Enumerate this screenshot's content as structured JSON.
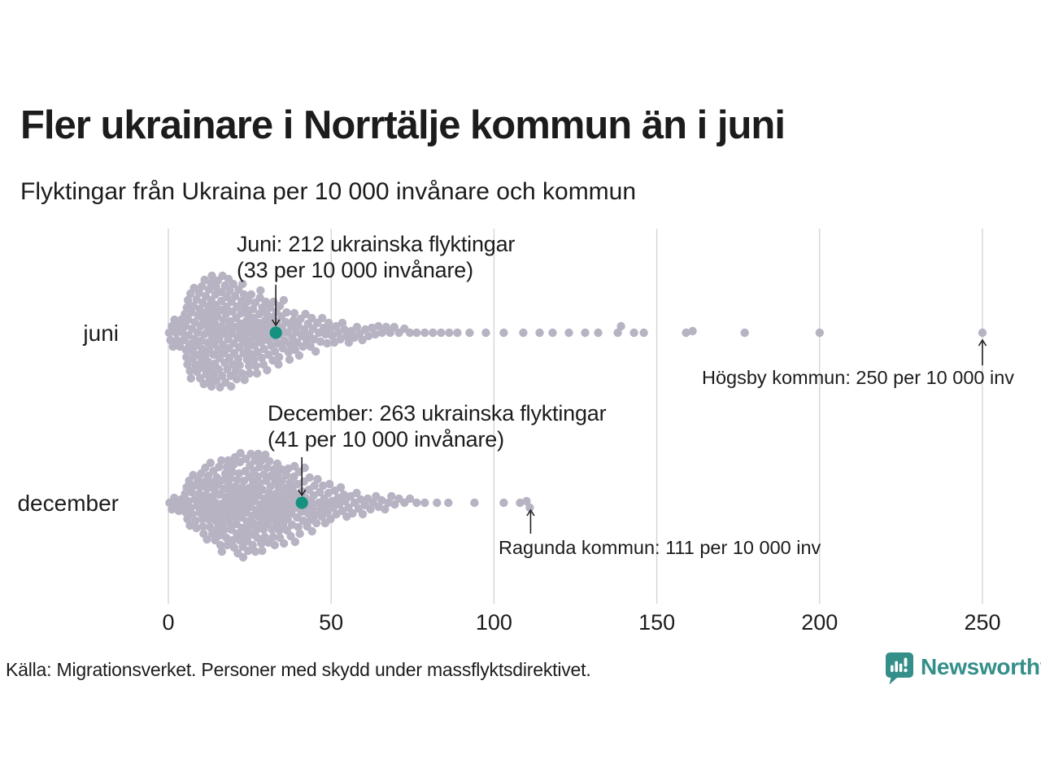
{
  "header": {
    "title": "Fler ukrainare i Norrtälje kommun än i juni",
    "subtitle": "Flyktingar från Ukraina per 10 000 invånare och kommun"
  },
  "chart_data": {
    "type": "beeswarm",
    "title": "Fler ukrainare i Norrtälje kommun än i juni",
    "subtitle": "Flyktingar från Ukraina per 10 000 invånare och kommun",
    "unit": "flyktingar per 10 000 invånare per kommun",
    "x_axis": {
      "min": 0,
      "max": 250,
      "ticks": [
        0,
        50,
        100,
        150,
        200,
        250
      ],
      "gridlines": true
    },
    "series": [
      {
        "label": "juni",
        "highlight": {
          "municipality": "Norrtälje kommun",
          "refugees": 212,
          "per_10000": 33,
          "line1": "Juni: 212 ukrainska flyktingar",
          "line2": "(33 per 10 000 invånare)"
        },
        "outlier_annotation": {
          "text": "Högsby kommun: 250 per 10 000 inv",
          "municipality": "Högsby kommun",
          "per_10000": 250
        },
        "distribution_bins": [
          {
            "from": 0,
            "to": 5,
            "count": 12
          },
          {
            "from": 5,
            "to": 10,
            "count": 32
          },
          {
            "from": 10,
            "to": 15,
            "count": 42
          },
          {
            "from": 15,
            "to": 20,
            "count": 38
          },
          {
            "from": 20,
            "to": 25,
            "count": 33
          },
          {
            "from": 25,
            "to": 30,
            "count": 28
          },
          {
            "from": 30,
            "to": 35,
            "count": 23
          },
          {
            "from": 35,
            "to": 40,
            "count": 17
          },
          {
            "from": 40,
            "to": 45,
            "count": 13
          },
          {
            "from": 45,
            "to": 50,
            "count": 10
          },
          {
            "from": 50,
            "to": 55,
            "count": 8
          },
          {
            "from": 55,
            "to": 60,
            "count": 6
          },
          {
            "from": 60,
            "to": 65,
            "count": 5
          },
          {
            "from": 65,
            "to": 70,
            "count": 4
          },
          {
            "from": 70,
            "to": 75,
            "count": 3
          },
          {
            "from": 75,
            "to": 80,
            "count": 2
          },
          {
            "from": 80,
            "to": 85,
            "count": 2
          },
          {
            "from": 85,
            "to": 90,
            "count": 2
          },
          {
            "from": 90,
            "to": 95,
            "count": 1
          },
          {
            "from": 95,
            "to": 100,
            "count": 1
          }
        ],
        "tail_values": [
          103,
          109,
          114,
          118,
          123,
          128,
          132,
          138,
          139,
          143,
          146,
          159,
          161,
          177,
          200,
          250
        ]
      },
      {
        "label": "december",
        "highlight": {
          "municipality": "Norrtälje kommun",
          "refugees": 263,
          "per_10000": 41,
          "line1": "December: 263 ukrainska flyktingar",
          "line2": "(41 per 10 000 invånare)"
        },
        "outlier_annotation": {
          "text": "Ragunda kommun: 111 per 10 000 inv",
          "municipality": "Ragunda kommun",
          "per_10000": 111
        },
        "distribution_bins": [
          {
            "from": 0,
            "to": 5,
            "count": 7
          },
          {
            "from": 5,
            "to": 10,
            "count": 20
          },
          {
            "from": 10,
            "to": 15,
            "count": 28
          },
          {
            "from": 15,
            "to": 20,
            "count": 33
          },
          {
            "from": 20,
            "to": 25,
            "count": 36
          },
          {
            "from": 25,
            "to": 30,
            "count": 36
          },
          {
            "from": 30,
            "to": 35,
            "count": 31
          },
          {
            "from": 35,
            "to": 40,
            "count": 26
          },
          {
            "from": 40,
            "to": 45,
            "count": 20
          },
          {
            "from": 45,
            "to": 50,
            "count": 15
          },
          {
            "from": 50,
            "to": 55,
            "count": 11
          },
          {
            "from": 55,
            "to": 60,
            "count": 8
          },
          {
            "from": 60,
            "to": 65,
            "count": 6
          },
          {
            "from": 65,
            "to": 70,
            "count": 5
          },
          {
            "from": 70,
            "to": 75,
            "count": 3
          },
          {
            "from": 75,
            "to": 80,
            "count": 2
          },
          {
            "from": 80,
            "to": 85,
            "count": 1
          }
        ],
        "tail_values": [
          86,
          94,
          103,
          108,
          110,
          111
        ]
      }
    ]
  },
  "colors": {
    "dot": "#b8b3c3",
    "highlight": "#15917f",
    "gridline": "#d6d4d9",
    "arrow": "#222222",
    "text": "#1c1c1c",
    "brand": "#348e89"
  },
  "footer": {
    "source": "Källa: Migrationsverket. Personer med skydd under massflyktsdirektivet."
  },
  "branding": {
    "logo_text": "Newsworthy"
  }
}
